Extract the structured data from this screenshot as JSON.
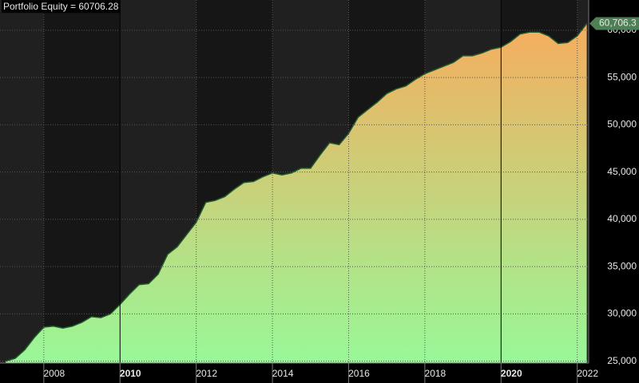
{
  "chart_data": {
    "type": "area",
    "title": "Portfolio Equity = 60706.28",
    "x": [
      2007.0,
      2007.25,
      2007.5,
      2007.75,
      2008.0,
      2008.25,
      2008.5,
      2008.75,
      2009.0,
      2009.25,
      2009.5,
      2009.75,
      2010.0,
      2010.25,
      2010.5,
      2010.75,
      2011.0,
      2011.25,
      2011.5,
      2011.75,
      2012.0,
      2012.25,
      2012.5,
      2012.75,
      2013.0,
      2013.25,
      2013.5,
      2013.75,
      2014.0,
      2014.25,
      2014.5,
      2014.75,
      2015.0,
      2015.25,
      2015.5,
      2015.75,
      2016.0,
      2016.25,
      2016.5,
      2016.75,
      2017.0,
      2017.25,
      2017.5,
      2017.75,
      2018.0,
      2018.25,
      2018.5,
      2018.75,
      2019.0,
      2019.25,
      2019.5,
      2019.75,
      2020.0,
      2020.25,
      2020.5,
      2020.75,
      2021.0,
      2021.25,
      2021.5,
      2021.75,
      2022.0,
      2022.25
    ],
    "values": [
      25000,
      25300,
      26200,
      27500,
      28600,
      28700,
      28500,
      28700,
      29100,
      29700,
      29600,
      30000,
      31000,
      32100,
      33100,
      33200,
      34200,
      36300,
      37100,
      38400,
      39700,
      41800,
      42000,
      42400,
      43200,
      43900,
      44000,
      44500,
      44900,
      44700,
      44900,
      45400,
      45400,
      46800,
      48100,
      47900,
      49100,
      50800,
      51600,
      52400,
      53300,
      53800,
      54100,
      54800,
      55400,
      55800,
      56200,
      56600,
      57300,
      57300,
      57600,
      58000,
      58200,
      58800,
      59600,
      59800,
      59800,
      59400,
      58600,
      58700,
      59400,
      60706.28
    ],
    "end_label": {
      "value": 60706.28,
      "label": "60,706.3"
    },
    "line_color": "#1f5a2a",
    "fill_gradient": [
      "#f6ad5e",
      "#98f898"
    ],
    "xlim": [
      2006.85,
      2022.3
    ],
    "xticks": [
      2008,
      2010,
      2012,
      2014,
      2016,
      2018,
      2020,
      2022
    ],
    "ylim": [
      24800,
      63200
    ],
    "yticks": [
      {
        "value": 25000,
        "label": "25,000"
      },
      {
        "value": 30000,
        "label": "30,000"
      },
      {
        "value": 35000,
        "label": "35,000"
      },
      {
        "value": 40000,
        "label": "40,000"
      },
      {
        "value": 45000,
        "label": "45,000"
      },
      {
        "value": 50000,
        "label": "50,000"
      },
      {
        "value": 55000,
        "label": "55,000"
      },
      {
        "value": 60000,
        "label": "60,000"
      }
    ],
    "grid": true
  }
}
